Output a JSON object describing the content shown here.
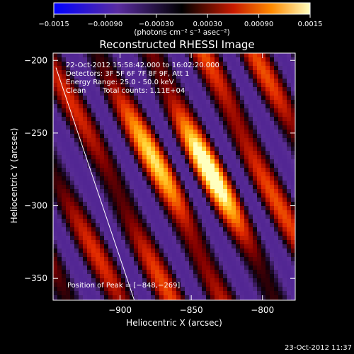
{
  "chart_data": {
    "type": "heatmap",
    "title": "Reconstructed RHESSI Image",
    "xlabel": "Heliocentric X (arcsec)",
    "ylabel": "Heliocentric Y (arcsec)",
    "xlim": [
      -947,
      -777
    ],
    "ylim": [
      -365,
      -195
    ],
    "xticks": [
      -900,
      -850,
      -800
    ],
    "xtick_labels": [
      "−900",
      "−850",
      "−800"
    ],
    "yticks": [
      -200,
      -250,
      -300,
      -350
    ],
    "ytick_labels": [
      "−200",
      "−250",
      "−300",
      "−350"
    ],
    "colorbar": {
      "range": [
        -0.0015,
        0.0015
      ],
      "ticks": [
        -0.0015,
        -0.0009,
        -0.0003,
        0.0003,
        0.0009,
        0.0015
      ],
      "tick_labels": [
        "−0.0015",
        "−0.00090",
        "−0.00030",
        "0.00030",
        "0.00090",
        "0.0015"
      ],
      "unit_label": "(photons cm⁻² s⁻¹ asec⁻²)"
    },
    "peak": {
      "x": -848,
      "y": -269,
      "value": 0.0015
    },
    "limb_line": {
      "x1": -945,
      "y1": -205,
      "x2": -890,
      "y2": -365
    }
  },
  "annotations": {
    "time_range": "22-Oct-2012 15:58:42.000 to 16:02:20.000",
    "detectors": "Detectors: 3F 5F 6F 7F 8F 9F, Att 1",
    "energy": "Energy Range: 25.0 - 50.0 keV",
    "clean": "Clean",
    "total_counts": "Total counts: 1.11E+04",
    "peak_position": "Position of Peak = [−848,−269]"
  },
  "footer": {
    "timestamp": "23-Oct-2012 11:37"
  }
}
